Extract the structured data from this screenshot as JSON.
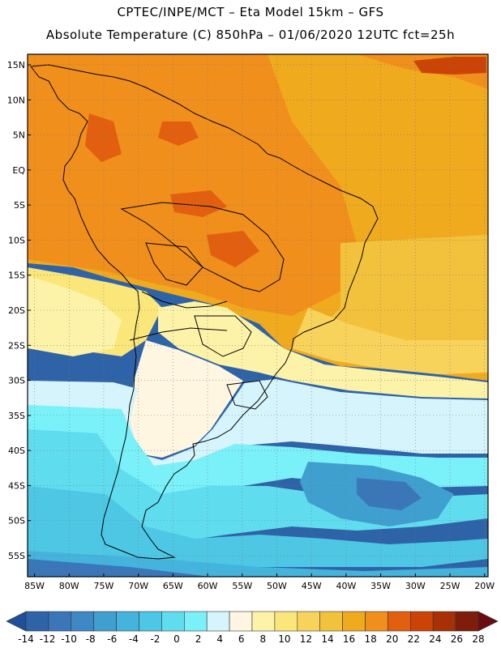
{
  "header": {
    "line1": "CPTEC/INPE/MCT –  Eta Model 15km – GFS",
    "line2": "Absolute Temperature (C) 850hPa – 01/06/2020 12UTC fct=25h"
  },
  "map": {
    "lat_labels": [
      "15N",
      "10N",
      "5N",
      "EQ",
      "5S",
      "10S",
      "15S",
      "20S",
      "25S",
      "30S",
      "35S",
      "40S",
      "45S",
      "50S",
      "55S"
    ],
    "lon_labels": [
      "85W",
      "80W",
      "75W",
      "70W",
      "65W",
      "60W",
      "55W",
      "50W",
      "45W",
      "40W",
      "35W",
      "30W",
      "25W",
      "20W"
    ],
    "lat_range": [
      -58,
      16.5
    ],
    "lon_range": [
      -86,
      -19.5
    ]
  },
  "colorbar": {
    "labels": [
      "-14",
      "-12",
      "-10",
      "-8",
      "-6",
      "-4",
      "-2",
      "0",
      "2",
      "4",
      "6",
      "8",
      "10",
      "12",
      "14",
      "16",
      "18",
      "20",
      "22",
      "24",
      "26",
      "28"
    ],
    "colors": [
      "#1f4e9a",
      "#2f63a8",
      "#3a76b8",
      "#3f88c6",
      "#3f9fcf",
      "#44b4dc",
      "#4ec7e4",
      "#5fdcee",
      "#7af0f8",
      "#d6f4fb",
      "#fff6e2",
      "#fdf3a8",
      "#fbe67a",
      "#f8d35c",
      "#f3c23c",
      "#f0aa1e",
      "#f08f1c",
      "#e35f10",
      "#cc4306",
      "#a73006",
      "#7d1d0a",
      "#6a0d12"
    ]
  }
}
